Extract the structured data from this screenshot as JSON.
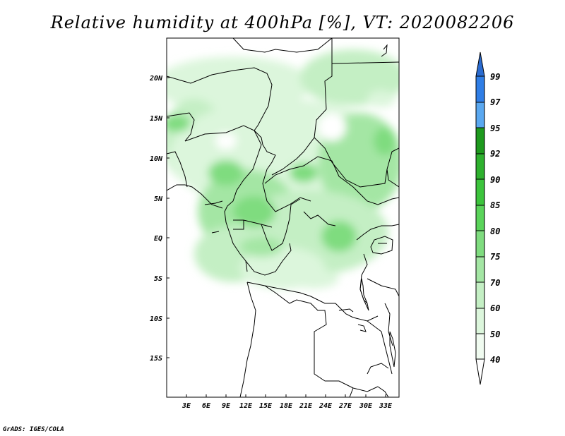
{
  "title": "Relative humidity at 400hPa [%], VT: 2020082206",
  "credit": "GrADS: IGES/COLA",
  "map": {
    "lat_labels": [
      "20N",
      "15N",
      "10N",
      "5N",
      "EQ",
      "5S",
      "10S",
      "15S"
    ],
    "lon_labels": [
      "3E",
      "6E",
      "9E",
      "12E",
      "15E",
      "18E",
      "21E",
      "24E",
      "27E",
      "30E",
      "33E"
    ],
    "lon_range": [
      0,
      35
    ],
    "lat_range": [
      -20,
      24
    ]
  },
  "colorbar": {
    "levels": [
      "99",
      "97",
      "95",
      "92",
      "90",
      "85",
      "80",
      "75",
      "70",
      "60",
      "50",
      "40"
    ],
    "colors": {
      "above99": "#2a6bd0",
      "97-99": "#2f7ee6",
      "95-97": "#5aa8f0",
      "92-95": "#1e9a1e",
      "90-92": "#2eb12e",
      "85-90": "#3cc43c",
      "80-85": "#5ad45a",
      "75-80": "#7fdc7f",
      "70-75": "#a4e6a4",
      "60-70": "#c4efc4",
      "50-60": "#dcf6dc",
      "40-50": "#f0fbf0",
      "below40": "#ffffff"
    }
  }
}
